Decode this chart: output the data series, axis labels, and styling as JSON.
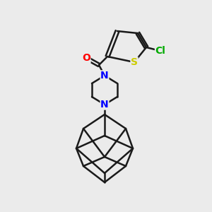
{
  "bg_color": "#ebebeb",
  "bond_color": "#1a1a1a",
  "bond_width": 1.8,
  "atom_colors": {
    "O": "#ff0000",
    "N": "#0000ff",
    "S": "#cccc00",
    "Cl": "#00aa00",
    "C": "#1a1a1a"
  },
  "font_size_atom": 10,
  "fig_size": [
    3.0,
    3.0
  ],
  "dpi": 100
}
